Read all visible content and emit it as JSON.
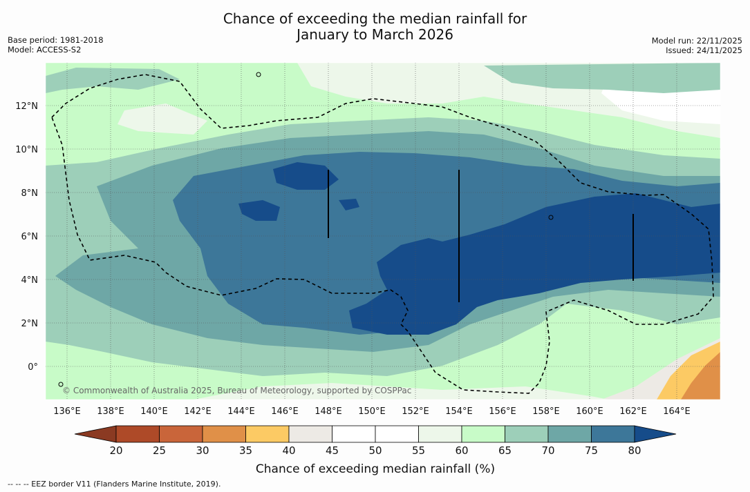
{
  "title": {
    "line1": "Chance of exceeding the median rainfall for",
    "line2": "January to March 2026"
  },
  "meta_left": {
    "base_period": "Base period: 1981-2018",
    "model": "Model: ACCESS-S2"
  },
  "meta_right": {
    "model_run": "Model run: 22/11/2025",
    "issued": "Issued: 24/11/2025"
  },
  "map": {
    "lon_labels": [
      "136°E",
      "138°E",
      "140°E",
      "142°E",
      "144°E",
      "146°E",
      "148°E",
      "150°E",
      "152°E",
      "154°E",
      "156°E",
      "158°E",
      "160°E",
      "162°E",
      "164°E"
    ],
    "lat_labels": [
      "12°N",
      "10°N",
      "8°N",
      "6°N",
      "4°N",
      "2°N",
      "0°"
    ],
    "copyright": "© Commonwealth of Australia 2025, Bureau of Meteorology, supported by COSPPac"
  },
  "legend": {
    "label": "Chance of exceeding median rainfall (%)",
    "ticks": [
      "20",
      "25",
      "30",
      "35",
      "40",
      "45",
      "50",
      "55",
      "60",
      "65",
      "70",
      "75",
      "80"
    ],
    "colors": [
      "#8b3a22",
      "#ae4a28",
      "#c9653a",
      "#e09048",
      "#fcca64",
      "#edeae5",
      "#ffffff",
      "#ffffff",
      "#edf7ea",
      "#c8fbc8",
      "#9dcfb9",
      "#6ea7a6",
      "#3d7799",
      "#164c8a"
    ]
  },
  "footnote": "--  --  -- EEZ border V11 (Flanders Marine Institute, 2019)."
}
